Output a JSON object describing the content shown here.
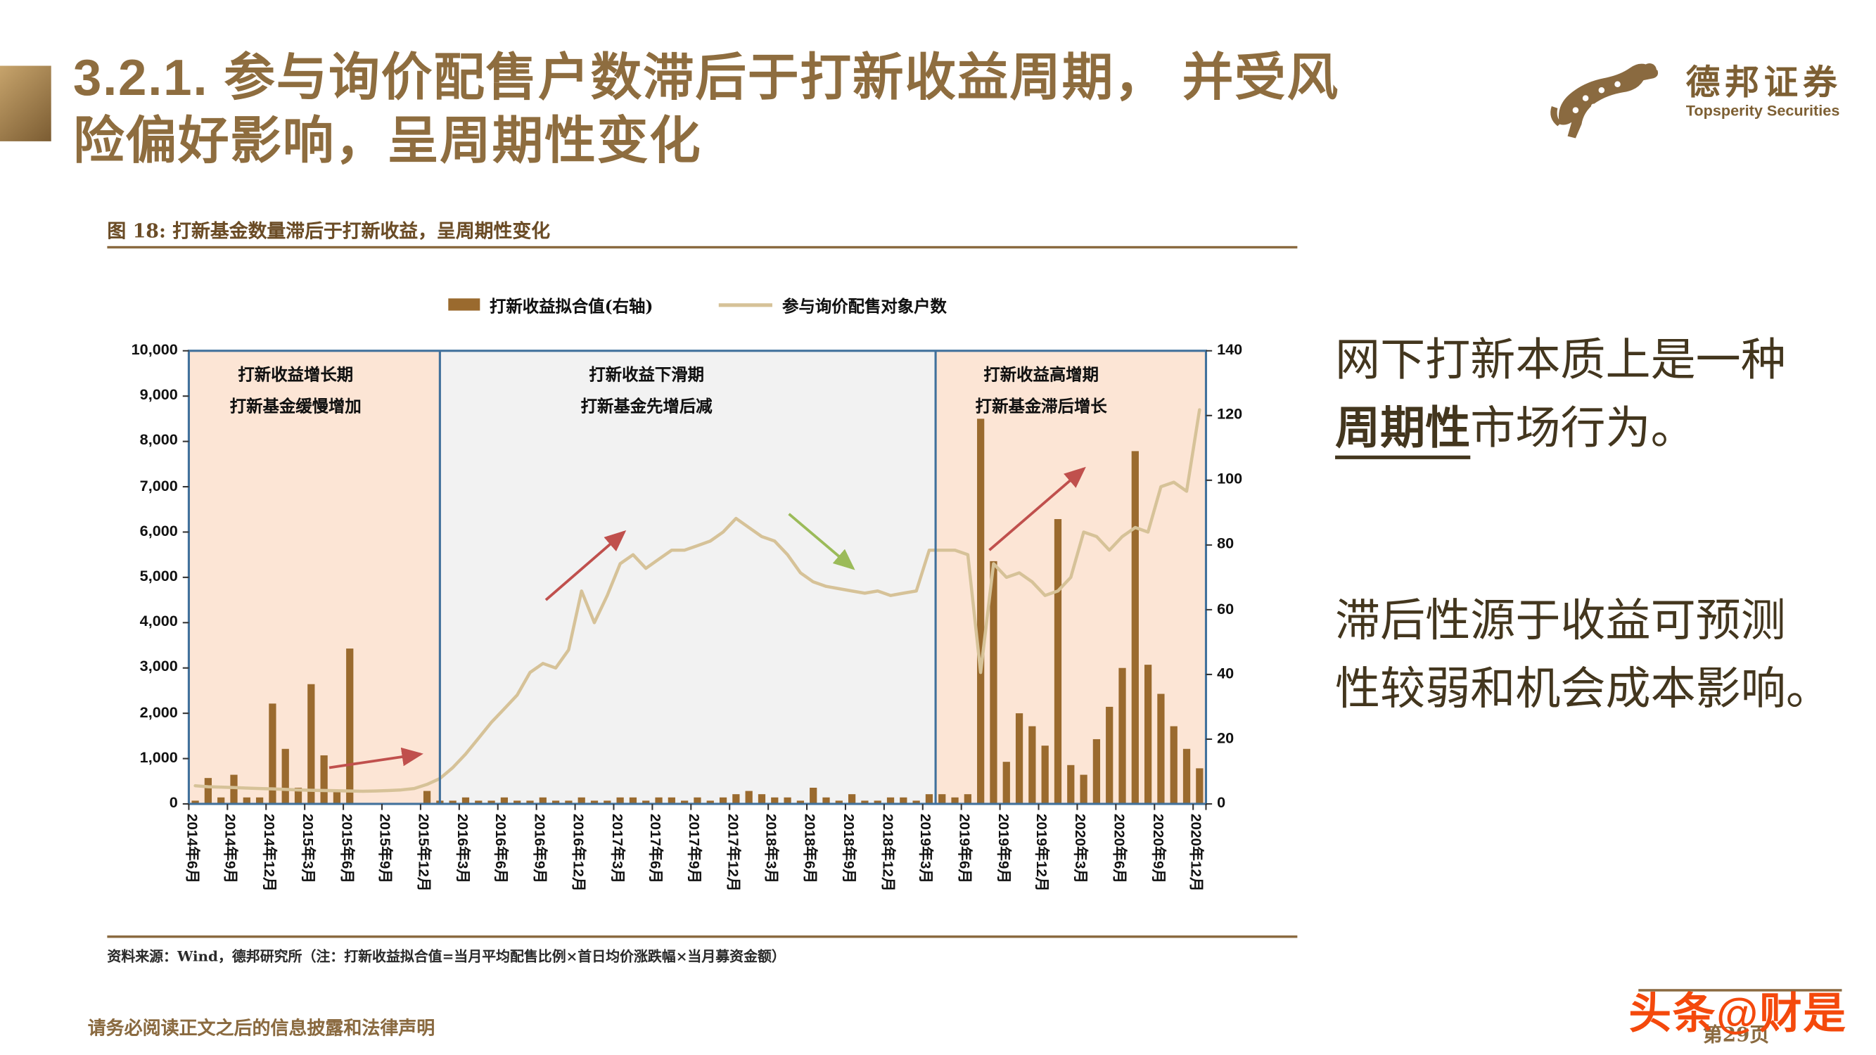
{
  "page": {
    "title_line1": "3.2.1. 参与询价配售户数滞后于打新收益周期， 并受风",
    "title_line2": "险偏好影响，呈周期性变化",
    "footer_left": "请务必阅读正文之后的信息披露和法律声明",
    "page_number": "第29页",
    "watermark": "头条@财是"
  },
  "logo": {
    "cn": "德邦证券",
    "en": "Topsperity Securities"
  },
  "figure": {
    "caption": "图 18: 打新基金数量滞后于打新收益，呈周期性变化",
    "source": "资料来源：Wind，德邦研究所（注：打新收益拟合值=当月平均配售比例×首日均价涨跌幅×当月募资金额）"
  },
  "legend": [
    {
      "label": "打新收益拟合值(右轴)",
      "type": "bar"
    },
    {
      "label": "参与询价配售对象户数",
      "type": "line"
    }
  ],
  "commentary": {
    "p1_line1": "网下打新本质上是一种",
    "p1_line2_em": "周期性",
    "p1_line2_rest": "市场行为。",
    "p2_line1": "滞后性源于收益可预测",
    "p2_line2": "性较弱和机会成本影响。"
  },
  "chart_data": {
    "type": "bar",
    "subtype": "bar+line combo, monthly 2014-06 to 2020-12",
    "frame_color": "#41719c",
    "x_tick_labels": [
      "2014年6月",
      "2014年9月",
      "2014年12月",
      "2015年3月",
      "2015年6月",
      "2015年9月",
      "2015年12月",
      "2016年3月",
      "2016年6月",
      "2016年9月",
      "2016年12月",
      "2017年3月",
      "2017年6月",
      "2017年9月",
      "2017年12月",
      "2018年3月",
      "2018年6月",
      "2018年9月",
      "2018年12月",
      "2019年3月",
      "2019年6月",
      "2019年9月",
      "2019年12月",
      "2020年3月",
      "2020年6月",
      "2020年9月",
      "2020年12月"
    ],
    "left_axis": {
      "min": 0,
      "max": 10000,
      "ticks": [
        "0",
        "1,000",
        "2,000",
        "3,000",
        "4,000",
        "5,000",
        "6,000",
        "7,000",
        "8,000",
        "9,000",
        "10,000"
      ]
    },
    "right_axis": {
      "min": 0,
      "max": 140,
      "ticks": [
        "0",
        "20",
        "40",
        "60",
        "80",
        "100",
        "120",
        "140"
      ]
    },
    "series": [
      {
        "name": "打新收益拟合值(右轴)",
        "type": "bar",
        "axis": "right",
        "color": "#9a6a2e",
        "values": [
          1,
          8,
          2,
          9,
          2,
          2,
          31,
          17,
          5,
          37,
          15,
          4,
          48,
          0,
          0,
          0,
          0,
          0,
          4,
          1,
          1,
          2,
          1,
          1,
          2,
          1,
          1,
          2,
          1,
          1,
          2,
          1,
          1,
          2,
          2,
          1,
          2,
          2,
          1,
          2,
          1,
          2,
          3,
          4,
          3,
          2,
          2,
          1,
          5,
          2,
          1,
          3,
          1,
          1,
          2,
          2,
          1,
          3,
          3,
          2,
          3,
          119,
          75,
          13,
          28,
          24,
          18,
          88,
          12,
          9,
          20,
          30,
          42,
          109,
          43,
          34,
          24,
          17,
          11
        ]
      },
      {
        "name": "参与询价配售对象户数",
        "type": "line",
        "axis": "left",
        "color": "#d6c298",
        "values": [
          400,
          380,
          370,
          360,
          350,
          340,
          330,
          320,
          310,
          300,
          295,
          290,
          285,
          280,
          285,
          295,
          310,
          340,
          430,
          560,
          800,
          1100,
          1450,
          1800,
          2100,
          2400,
          2900,
          3100,
          3000,
          3400,
          4700,
          4000,
          4600,
          5300,
          5500,
          5200,
          5400,
          5600,
          5600,
          5700,
          5800,
          6000,
          6300,
          6100,
          5900,
          5800,
          5500,
          5100,
          4900,
          4800,
          4750,
          4700,
          4650,
          4700,
          4600,
          4650,
          4700,
          5600,
          5600,
          5600,
          5500,
          2900,
          5300,
          5000,
          5100,
          4900,
          4600,
          4700,
          5000,
          6000,
          5900,
          5600,
          5900,
          6100,
          6000,
          7000,
          7100,
          6900,
          8700
        ]
      }
    ],
    "regions": [
      {
        "start": 0,
        "end": 19.5,
        "bg": "#fce5d5",
        "cx": 0.105,
        "line1": "打新收益增长期",
        "line2": "打新基金缓慢增加"
      },
      {
        "start": 19.5,
        "end": 58,
        "bg": "#f2f2f2",
        "cx": 0.45,
        "line1": "打新收益下滑期",
        "line2": "打新基金先增后减"
      },
      {
        "start": 58,
        "end": 79,
        "bg": "#fce5d5",
        "cx": 0.838,
        "line1": "打新收益高增期",
        "line2": "打新基金滞后增长"
      }
    ],
    "annotations": {
      "arrows": [
        {
          "color": "#c0504d",
          "x1": 0.138,
          "y1": 0.92,
          "x2": 0.228,
          "y2": 0.89
        },
        {
          "color": "#c0504d",
          "x1": 0.351,
          "y1": 0.55,
          "x2": 0.428,
          "y2": 0.4
        },
        {
          "color": "#9bbb59",
          "x1": 0.59,
          "y1": 0.36,
          "x2": 0.653,
          "y2": 0.48
        },
        {
          "color": "#c0504d",
          "x1": 0.787,
          "y1": 0.44,
          "x2": 0.88,
          "y2": 0.26
        }
      ]
    }
  }
}
